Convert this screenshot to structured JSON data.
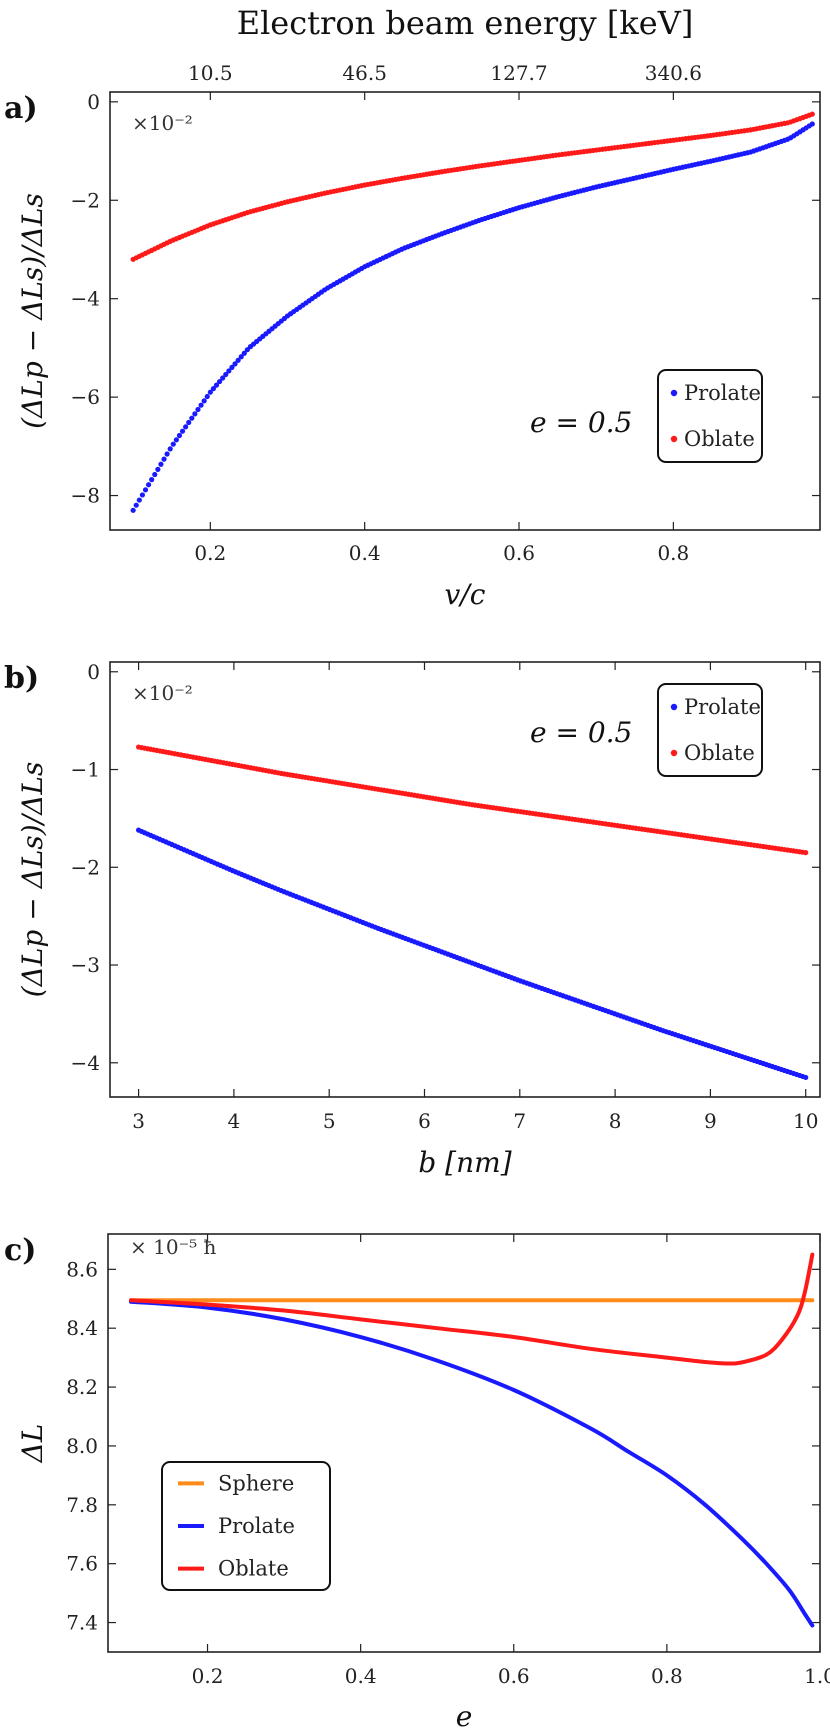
{
  "chart_data": [
    {
      "type": "scatter",
      "panel_label": "a)",
      "top_axis_label": "Electron beam energy [keV]",
      "top_ticks": [
        {
          "v": 0.2,
          "label": "10.5"
        },
        {
          "v": 0.4,
          "label": "46.5"
        },
        {
          "v": 0.6,
          "label": "127.7"
        },
        {
          "v": 0.8,
          "label": "340.6"
        }
      ],
      "xlabel": "v/c",
      "ylabel": "(ΔLp − ΔLs)/ΔLs",
      "multiplier": "×10⁻²",
      "annotation": "e = 0.5",
      "xlim": [
        0.07,
        0.99
      ],
      "ylim": [
        -8.7,
        0.2
      ],
      "xticks": [
        0.2,
        0.4,
        0.6,
        0.8
      ],
      "yticks": [
        0,
        -2,
        -4,
        -6,
        -8
      ],
      "legend": {
        "position": "lower-right",
        "entries": [
          "Prolate",
          "Oblate"
        ]
      },
      "series": [
        {
          "name": "Prolate",
          "color": "#1a1aff",
          "x": [
            0.1,
            0.15,
            0.2,
            0.25,
            0.3,
            0.35,
            0.4,
            0.45,
            0.5,
            0.55,
            0.6,
            0.65,
            0.7,
            0.75,
            0.8,
            0.85,
            0.9,
            0.95,
            0.98
          ],
          "y": [
            -8.3,
            -7.0,
            -5.9,
            -5.0,
            -4.35,
            -3.8,
            -3.35,
            -2.98,
            -2.68,
            -2.4,
            -2.15,
            -1.93,
            -1.73,
            -1.55,
            -1.37,
            -1.2,
            -1.02,
            -0.75,
            -0.45
          ]
        },
        {
          "name": "Oblate",
          "color": "#ff1a1a",
          "x": [
            0.1,
            0.15,
            0.2,
            0.25,
            0.3,
            0.35,
            0.4,
            0.45,
            0.5,
            0.55,
            0.6,
            0.65,
            0.7,
            0.75,
            0.8,
            0.85,
            0.9,
            0.95,
            0.98
          ],
          "y": [
            -3.2,
            -2.82,
            -2.5,
            -2.24,
            -2.03,
            -1.85,
            -1.69,
            -1.55,
            -1.42,
            -1.3,
            -1.19,
            -1.08,
            -0.98,
            -0.88,
            -0.78,
            -0.68,
            -0.57,
            -0.42,
            -0.25
          ]
        }
      ]
    },
    {
      "type": "scatter",
      "panel_label": "b)",
      "xlabel": "b [nm]",
      "ylabel": "(ΔLp − ΔLs)/ΔLs",
      "multiplier": "×10⁻²",
      "annotation": "e = 0.5",
      "xlim": [
        2.7,
        10.15
      ],
      "ylim": [
        -4.35,
        0.1
      ],
      "xticks": [
        3,
        4,
        5,
        6,
        7,
        8,
        9,
        10
      ],
      "yticks": [
        0,
        -1,
        -2,
        -3,
        -4
      ],
      "legend": {
        "position": "top-right",
        "entries": [
          "Prolate",
          "Oblate"
        ]
      },
      "series": [
        {
          "name": "Prolate",
          "color": "#1a1aff",
          "x": [
            3,
            3.5,
            4,
            4.5,
            5,
            5.5,
            6,
            6.5,
            7,
            7.5,
            8,
            8.5,
            9,
            9.5,
            10
          ],
          "y": [
            -1.62,
            -1.83,
            -2.04,
            -2.24,
            -2.43,
            -2.62,
            -2.8,
            -2.98,
            -3.16,
            -3.33,
            -3.5,
            -3.67,
            -3.83,
            -3.99,
            -4.15
          ]
        },
        {
          "name": "Oblate",
          "color": "#ff1a1a",
          "x": [
            3,
            3.5,
            4,
            4.5,
            5,
            5.5,
            6,
            6.5,
            7,
            7.5,
            8,
            8.5,
            9,
            9.5,
            10
          ],
          "y": [
            -0.77,
            -0.86,
            -0.95,
            -1.04,
            -1.12,
            -1.2,
            -1.28,
            -1.36,
            -1.43,
            -1.5,
            -1.57,
            -1.64,
            -1.71,
            -1.78,
            -1.85
          ]
        }
      ]
    },
    {
      "type": "line",
      "panel_label": "c)",
      "xlabel": "e",
      "ylabel": "ΔL",
      "multiplier": "× 10⁻⁵ ħ",
      "xlim": [
        0.07,
        1.0
      ],
      "ylim": [
        7.3,
        8.72
      ],
      "xticks": [
        0.2,
        0.4,
        0.6,
        0.8,
        1.0
      ],
      "xtick_labels": [
        "0.2",
        "0.4",
        "0.6",
        "0.8",
        "1.0"
      ],
      "yticks": [
        7.4,
        7.6,
        7.8,
        8.0,
        8.2,
        8.4,
        8.6
      ],
      "ytick_labels": [
        "7.4",
        "7.6",
        "7.8",
        "8.0",
        "8.2",
        "8.4",
        "8.6"
      ],
      "legend": {
        "position": "bottom-left",
        "entries": [
          "Sphere",
          "Prolate",
          "Oblate"
        ]
      },
      "series": [
        {
          "name": "Sphere",
          "color": "#ff8c1a",
          "x": [
            0.1,
            0.99
          ],
          "y": [
            8.495,
            8.495
          ]
        },
        {
          "name": "Prolate",
          "color": "#1a1aff",
          "x": [
            0.1,
            0.2,
            0.3,
            0.4,
            0.5,
            0.6,
            0.7,
            0.75,
            0.8,
            0.85,
            0.9,
            0.93,
            0.96,
            0.98,
            0.99
          ],
          "y": [
            8.49,
            8.47,
            8.43,
            8.37,
            8.29,
            8.19,
            8.06,
            7.98,
            7.9,
            7.8,
            7.68,
            7.6,
            7.51,
            7.43,
            7.39
          ]
        },
        {
          "name": "Oblate",
          "color": "#ff1a1a",
          "x": [
            0.1,
            0.2,
            0.3,
            0.4,
            0.5,
            0.6,
            0.7,
            0.8,
            0.85,
            0.88,
            0.9,
            0.93,
            0.95,
            0.97,
            0.98,
            0.99
          ],
          "y": [
            8.495,
            8.48,
            8.46,
            8.43,
            8.4,
            8.37,
            8.33,
            8.3,
            8.285,
            8.28,
            8.285,
            8.31,
            8.36,
            8.44,
            8.52,
            8.65
          ]
        }
      ]
    }
  ]
}
